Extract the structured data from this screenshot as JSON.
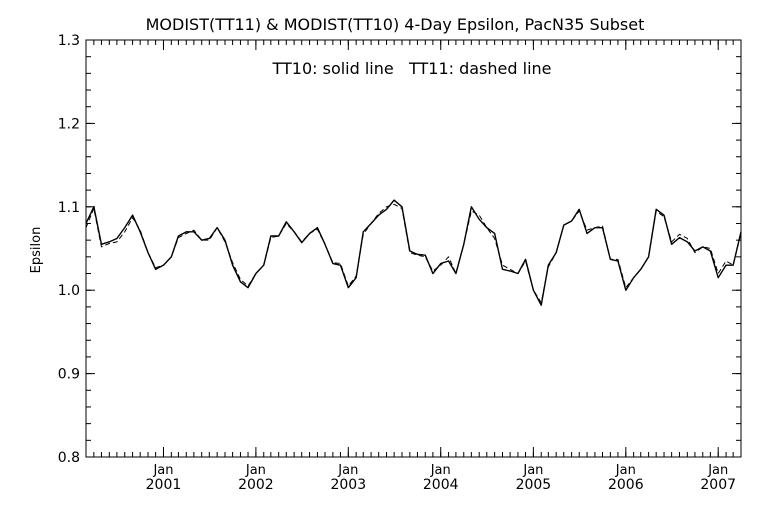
{
  "chart_data": {
    "type": "line",
    "title": "MODIST(TT11) & MODIST(TT10) 4-Day Epsilon, PacN35 Subset",
    "annotation": "TT10: solid line   TT11: dashed line",
    "xlabel": "",
    "ylabel": "Epsilon",
    "xlim": [
      "2000-03-01",
      "2007-04-01"
    ],
    "ylim": [
      0.8,
      1.3
    ],
    "yticks": [
      "0.8",
      "0.9",
      "1.0",
      "1.1",
      "1.2",
      "1.3"
    ],
    "xticks": [
      {
        "date": "2001-01-01",
        "month": "Jan",
        "year": "2001"
      },
      {
        "date": "2002-01-01",
        "month": "Jan",
        "year": "2002"
      },
      {
        "date": "2003-01-01",
        "month": "Jan",
        "year": "2003"
      },
      {
        "date": "2004-01-01",
        "month": "Jan",
        "year": "2004"
      },
      {
        "date": "2005-01-01",
        "month": "Jan",
        "year": "2005"
      },
      {
        "date": "2006-01-01",
        "month": "Jan",
        "year": "2006"
      },
      {
        "date": "2007-01-01",
        "month": "Jan",
        "year": "2007"
      }
    ],
    "grid": false,
    "x": [
      "2000-03-01",
      "2000-04-01",
      "2000-05-01",
      "2000-06-01",
      "2000-07-01",
      "2000-08-01",
      "2000-09-01",
      "2000-10-01",
      "2000-11-01",
      "2000-12-01",
      "2001-01-01",
      "2001-02-01",
      "2001-03-01",
      "2001-04-01",
      "2001-05-01",
      "2001-06-01",
      "2001-07-01",
      "2001-08-01",
      "2001-09-01",
      "2001-10-01",
      "2001-11-01",
      "2001-12-01",
      "2002-01-01",
      "2002-02-01",
      "2002-03-01",
      "2002-04-01",
      "2002-05-01",
      "2002-06-01",
      "2002-07-01",
      "2002-08-01",
      "2002-09-01",
      "2002-10-01",
      "2002-11-01",
      "2002-12-01",
      "2003-01-01",
      "2003-02-01",
      "2003-03-01",
      "2003-04-01",
      "2003-05-01",
      "2003-06-01",
      "2003-07-01",
      "2003-08-01",
      "2003-09-01",
      "2003-10-01",
      "2003-11-01",
      "2003-12-01",
      "2004-01-01",
      "2004-02-01",
      "2004-03-01",
      "2004-04-01",
      "2004-05-01",
      "2004-06-01",
      "2004-07-01",
      "2004-08-01",
      "2004-09-01",
      "2004-10-01",
      "2004-11-01",
      "2004-12-01",
      "2005-01-01",
      "2005-02-01",
      "2005-03-01",
      "2005-04-01",
      "2005-05-01",
      "2005-06-01",
      "2005-07-01",
      "2005-08-01",
      "2005-09-01",
      "2005-10-01",
      "2005-11-01",
      "2005-12-01",
      "2006-01-01",
      "2006-02-01",
      "2006-03-01",
      "2006-04-01",
      "2006-05-01",
      "2006-06-01",
      "2006-07-01",
      "2006-08-01",
      "2006-09-01",
      "2006-10-01",
      "2006-11-01",
      "2006-12-01",
      "2007-01-01",
      "2007-02-01",
      "2007-03-01",
      "2007-04-01"
    ],
    "series": [
      {
        "name": "TT10",
        "style": "solid",
        "values": [
          1.08,
          1.1,
          1.055,
          1.058,
          1.062,
          1.075,
          1.09,
          1.07,
          1.045,
          1.025,
          1.03,
          1.04,
          1.065,
          1.07,
          1.07,
          1.06,
          1.062,
          1.075,
          1.06,
          1.03,
          1.01,
          1.003,
          1.02,
          1.03,
          1.065,
          1.065,
          1.082,
          1.07,
          1.057,
          1.068,
          1.075,
          1.055,
          1.032,
          1.03,
          1.003,
          1.015,
          1.07,
          1.08,
          1.09,
          1.097,
          1.108,
          1.1,
          1.047,
          1.043,
          1.042,
          1.02,
          1.032,
          1.035,
          1.02,
          1.055,
          1.1,
          1.085,
          1.075,
          1.068,
          1.025,
          1.023,
          1.02,
          1.037,
          1.0,
          0.982,
          1.03,
          1.045,
          1.078,
          1.083,
          1.097,
          1.068,
          1.075,
          1.075,
          1.037,
          1.035,
          1.0,
          1.015,
          1.025,
          1.04,
          1.097,
          1.09,
          1.055,
          1.063,
          1.058,
          1.047,
          1.052,
          1.047,
          1.015,
          1.03,
          1.03,
          1.07
        ],
        "color": "#000000"
      },
      {
        "name": "TT11",
        "style": "dashed",
        "values": [
          1.075,
          1.098,
          1.052,
          1.056,
          1.058,
          1.07,
          1.087,
          1.072,
          1.045,
          1.027,
          1.03,
          1.04,
          1.063,
          1.068,
          1.072,
          1.06,
          1.06,
          1.075,
          1.058,
          1.033,
          1.013,
          1.005,
          1.02,
          1.03,
          1.063,
          1.065,
          1.08,
          1.07,
          1.058,
          1.068,
          1.073,
          1.055,
          1.033,
          1.032,
          1.005,
          1.017,
          1.067,
          1.08,
          1.092,
          1.1,
          1.103,
          1.098,
          1.045,
          1.042,
          1.04,
          1.023,
          1.03,
          1.04,
          1.02,
          1.055,
          1.095,
          1.09,
          1.075,
          1.062,
          1.03,
          1.025,
          1.02,
          1.035,
          1.0,
          0.985,
          1.028,
          1.045,
          1.078,
          1.083,
          1.095,
          1.072,
          1.075,
          1.077,
          1.037,
          1.037,
          1.003,
          1.015,
          1.025,
          1.04,
          1.095,
          1.088,
          1.058,
          1.067,
          1.062,
          1.045,
          1.052,
          1.05,
          1.02,
          1.035,
          1.03,
          1.068
        ],
        "color": "#000000"
      }
    ]
  }
}
